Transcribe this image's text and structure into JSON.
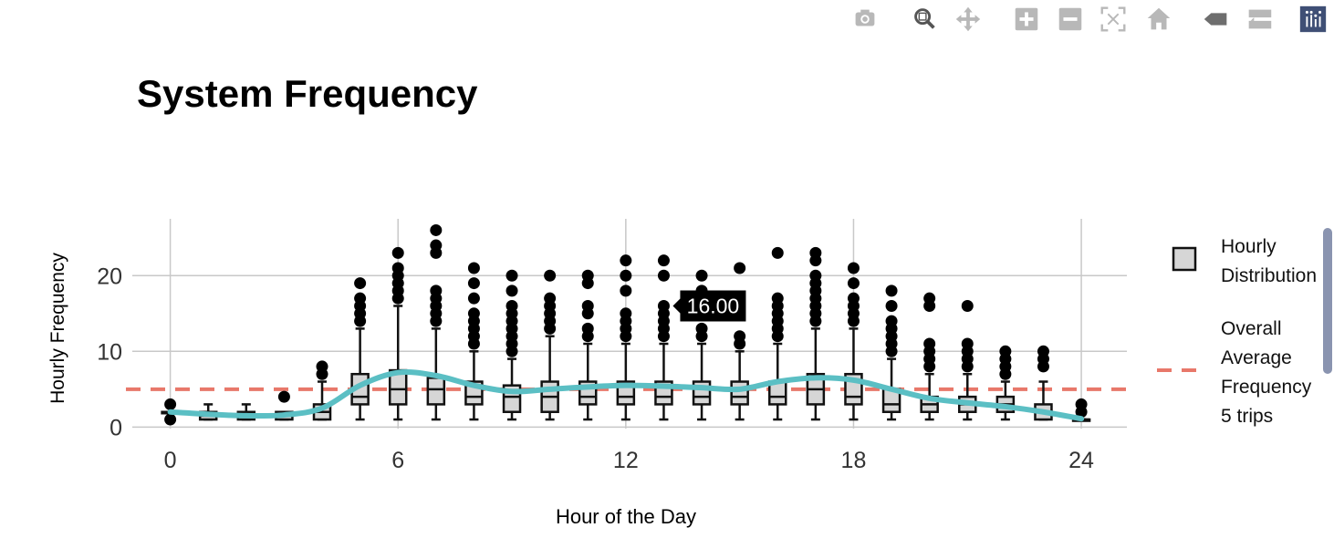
{
  "modebar": {
    "buttons": [
      {
        "name": "camera-icon",
        "x": 0
      },
      {
        "name": "zoom-icon",
        "x": 0
      },
      {
        "name": "pan-icon",
        "x": 0
      },
      {
        "name": "zoom-in-icon",
        "x": 0
      },
      {
        "name": "zoom-out-icon",
        "x": 0
      },
      {
        "name": "autoscale-icon",
        "x": 0
      },
      {
        "name": "home-icon",
        "x": 0
      },
      {
        "name": "spike-lines-icon",
        "x": 0
      },
      {
        "name": "compare-hover-icon",
        "x": 0
      },
      {
        "name": "plotly-logo-icon",
        "x": 0
      }
    ]
  },
  "chart_data": {
    "type": "box",
    "title": "System Frequency",
    "xlabel": "Hour of the Day",
    "ylabel": "Hourly Frequency",
    "xlim": [
      -1,
      25.2
    ],
    "ylim": [
      -0.2,
      27.5
    ],
    "xticks": [
      0,
      6,
      12,
      18,
      24
    ],
    "yticks": [
      0,
      10,
      20
    ],
    "grid": true,
    "legend_position": "right",
    "legend": [
      {
        "label_lines": [
          "Hourly",
          "Distribution"
        ],
        "kind": "box"
      },
      {
        "label_lines": [
          "Overall",
          "Average",
          "Frequency",
          "5 trips"
        ],
        "kind": "dashed-line"
      }
    ],
    "average_line": {
      "value": 5,
      "color": "#e8786a"
    },
    "smooth_line": {
      "color": "#5bbfc4",
      "x": [
        0,
        1,
        2,
        3,
        4,
        5,
        6,
        7,
        8,
        9,
        10,
        11,
        12,
        13,
        14,
        15,
        16,
        17,
        18,
        19,
        20,
        21,
        22,
        23,
        24
      ],
      "y": [
        2,
        1.7,
        1.5,
        1.6,
        2.5,
        5.5,
        7.2,
        6.8,
        5.5,
        4.7,
        5.0,
        5.3,
        5.5,
        5.4,
        5.2,
        5.0,
        6.0,
        6.5,
        6.2,
        5.0,
        3.8,
        3.2,
        2.7,
        2.0,
        1.1
      ]
    },
    "boxes": [
      {
        "hour": 0,
        "q1": 2,
        "median": 2,
        "q3": 2,
        "low": 2,
        "high": 2,
        "outliers": [
          3,
          1
        ]
      },
      {
        "hour": 1,
        "q1": 1,
        "median": 1.5,
        "q3": 2,
        "low": 1,
        "high": 3,
        "outliers": []
      },
      {
        "hour": 2,
        "q1": 1,
        "median": 1.5,
        "q3": 2,
        "low": 1,
        "high": 3,
        "outliers": []
      },
      {
        "hour": 3,
        "q1": 1,
        "median": 1.5,
        "q3": 2,
        "low": 1,
        "high": 2,
        "outliers": [
          4
        ]
      },
      {
        "hour": 4,
        "q1": 1,
        "median": 2,
        "q3": 3,
        "low": 1,
        "high": 6,
        "outliers": [
          7,
          8
        ]
      },
      {
        "hour": 5,
        "q1": 3,
        "median": 4,
        "q3": 7,
        "low": 1,
        "high": 13,
        "outliers": [
          14,
          15,
          16,
          17,
          19
        ]
      },
      {
        "hour": 6,
        "q1": 3,
        "median": 5,
        "q3": 7.5,
        "low": 1,
        "high": 16,
        "outliers": [
          17,
          18,
          19,
          20,
          21,
          23
        ]
      },
      {
        "hour": 7,
        "q1": 3,
        "median": 5,
        "q3": 6.5,
        "low": 1,
        "high": 13,
        "outliers": [
          14,
          15,
          16,
          17,
          18,
          23,
          24,
          26
        ]
      },
      {
        "hour": 8,
        "q1": 3,
        "median": 4,
        "q3": 6,
        "low": 1,
        "high": 10,
        "outliers": [
          11,
          12,
          13,
          14,
          15,
          17,
          19,
          21
        ]
      },
      {
        "hour": 9,
        "q1": 2,
        "median": 4,
        "q3": 5.5,
        "low": 1,
        "high": 9,
        "outliers": [
          10,
          11,
          12,
          13,
          14,
          15,
          16,
          18,
          20
        ]
      },
      {
        "hour": 10,
        "q1": 2,
        "median": 4,
        "q3": 6,
        "low": 1,
        "high": 12,
        "outliers": [
          13,
          14,
          15,
          16,
          17,
          20
        ]
      },
      {
        "hour": 11,
        "q1": 3,
        "median": 4,
        "q3": 6,
        "low": 1,
        "high": 11,
        "outliers": [
          12,
          13,
          15,
          16,
          19,
          20
        ]
      },
      {
        "hour": 12,
        "q1": 3,
        "median": 4,
        "q3": 6,
        "low": 1,
        "high": 11,
        "outliers": [
          12,
          13,
          14,
          15,
          18,
          20,
          22
        ]
      },
      {
        "hour": 13,
        "q1": 3,
        "median": 4,
        "q3": 6,
        "low": 1,
        "high": 11,
        "outliers": [
          12,
          13,
          14,
          15,
          16,
          20,
          22
        ]
      },
      {
        "hour": 14,
        "q1": 3,
        "median": 4,
        "q3": 6,
        "low": 1,
        "high": 11,
        "outliers": [
          12,
          13,
          15,
          18,
          20
        ]
      },
      {
        "hour": 15,
        "q1": 3,
        "median": 4,
        "q3": 6,
        "low": 1,
        "high": 10,
        "outliers": [
          11,
          12,
          21
        ]
      },
      {
        "hour": 16,
        "q1": 3,
        "median": 4,
        "q3": 6,
        "low": 1,
        "high": 11,
        "outliers": [
          12,
          13,
          14,
          15,
          16,
          17,
          23
        ]
      },
      {
        "hour": 17,
        "q1": 3,
        "median": 5,
        "q3": 7,
        "low": 1,
        "high": 13,
        "outliers": [
          14,
          15,
          16,
          17,
          18,
          19,
          20,
          22,
          23
        ]
      },
      {
        "hour": 18,
        "q1": 3,
        "median": 4,
        "q3": 7,
        "low": 1,
        "high": 13,
        "outliers": [
          14,
          15,
          16,
          17,
          19,
          21
        ]
      },
      {
        "hour": 19,
        "q1": 2,
        "median": 3,
        "q3": 5,
        "low": 1,
        "high": 9,
        "outliers": [
          10,
          11,
          12,
          13,
          14,
          16,
          18
        ]
      },
      {
        "hour": 20,
        "q1": 2,
        "median": 3,
        "q3": 4,
        "low": 1,
        "high": 7,
        "outliers": [
          8,
          9,
          10,
          11,
          16,
          17
        ]
      },
      {
        "hour": 21,
        "q1": 2,
        "median": 3,
        "q3": 4,
        "low": 1,
        "high": 7,
        "outliers": [
          8,
          9,
          10,
          11,
          16
        ]
      },
      {
        "hour": 22,
        "q1": 2,
        "median": 3,
        "q3": 4,
        "low": 1,
        "high": 6,
        "outliers": [
          7,
          8,
          9,
          10
        ]
      },
      {
        "hour": 23,
        "q1": 1,
        "median": 2,
        "q3": 3,
        "low": 1,
        "high": 6,
        "outliers": [
          8,
          9,
          10
        ]
      },
      {
        "hour": 24,
        "q1": 1,
        "median": 1,
        "q3": 1,
        "low": 1,
        "high": 1,
        "outliers": [
          2,
          3
        ]
      }
    ],
    "hover_label": {
      "text": "16.00",
      "x": 13,
      "y": 16
    }
  },
  "colors": {
    "box_fill": "#d6d6d6",
    "box_stroke": "#111111",
    "grid": "#c8c8c8",
    "modebar_icon": "#b8b8b8",
    "modebar_active": "#555555",
    "logo_bg": "#3f4f75"
  }
}
